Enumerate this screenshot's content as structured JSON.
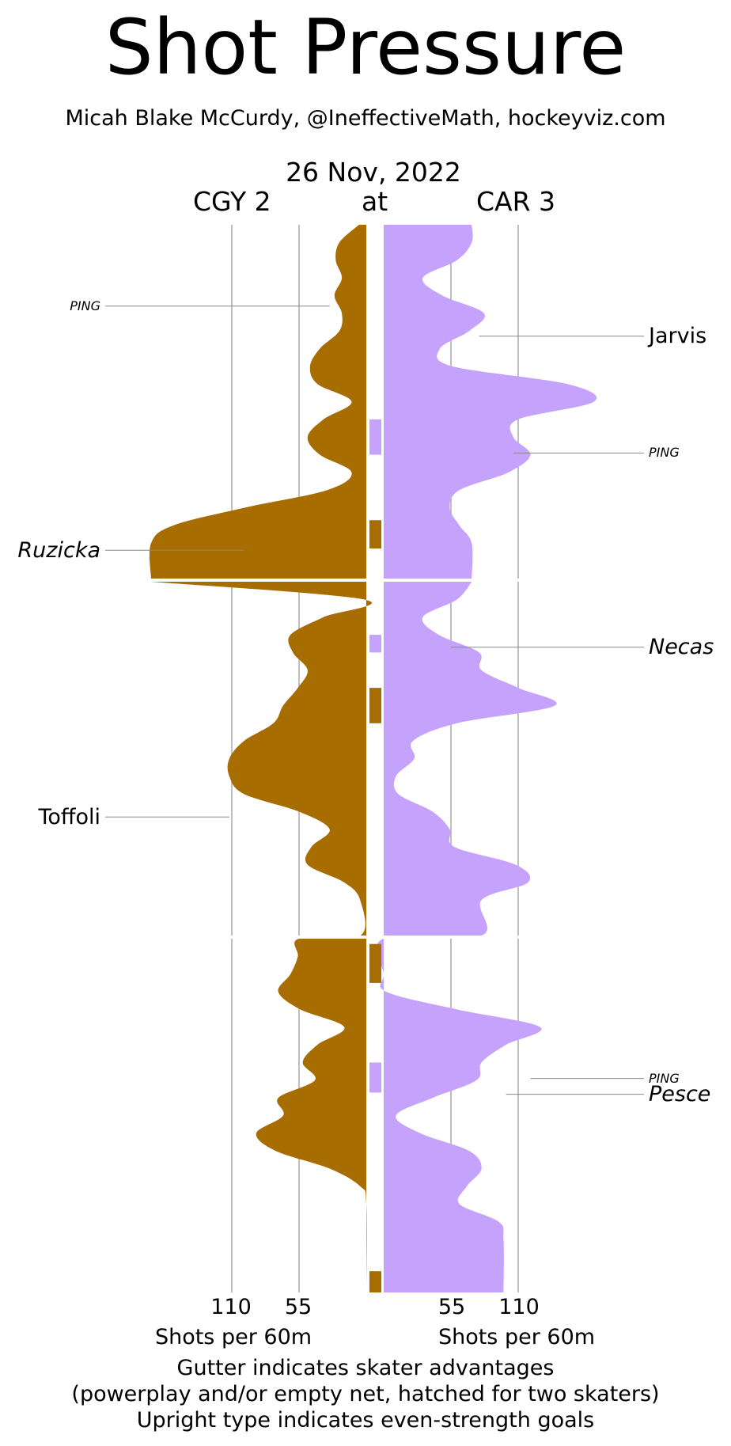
{
  "title": "Shot Pressure",
  "subtitle": "Micah Blake McCurdy, @IneffectiveMath, hockeyviz.com",
  "date": "26 Nov, 2022",
  "away_label": "CGY 2",
  "at_label": "at",
  "home_label": "CAR 3",
  "ticks": {
    "left_110": "110",
    "left_55": "55",
    "right_55": "55",
    "right_110": "110"
  },
  "axis_label_left": "Shots per 60m",
  "axis_label_right": "Shots per 60m",
  "footer": [
    "Gutter indicates skater advantages",
    "(powerplay and/or empty net, hatched for two skaters)",
    "Upright type indicates even-strength goals"
  ],
  "colors": {
    "away": "#a86d00",
    "home": "#c5a3fd",
    "grid": "#aaaaaa",
    "leader": "#888888"
  },
  "chart_data": {
    "type": "area",
    "x_unit": "game minutes",
    "value_unit": "Shots per 60m",
    "xlim": [
      0,
      60
    ],
    "periods": [
      [
        0,
        20
      ],
      [
        20,
        40
      ],
      [
        40,
        60
      ]
    ],
    "grid_values": [
      55,
      110
    ],
    "series": [
      {
        "name": "CGY 2",
        "side": "left",
        "points": [
          [
            0,
            6
          ],
          [
            1,
            22
          ],
          [
            2,
            25
          ],
          [
            3,
            20
          ],
          [
            4,
            26
          ],
          [
            5,
            20
          ],
          [
            6,
            22
          ],
          [
            7,
            38
          ],
          [
            8,
            46
          ],
          [
            9,
            40
          ],
          [
            10,
            12
          ],
          [
            11,
            35
          ],
          [
            12,
            48
          ],
          [
            13,
            38
          ],
          [
            14,
            12
          ],
          [
            15,
            32
          ],
          [
            16,
            100
          ],
          [
            17,
            158
          ],
          [
            18,
            176
          ],
          [
            20,
            176
          ],
          [
            21,
            2
          ],
          [
            22,
            35
          ],
          [
            23,
            62
          ],
          [
            24,
            60
          ],
          [
            25,
            48
          ],
          [
            26,
            56
          ],
          [
            27,
            68
          ],
          [
            28,
            76
          ],
          [
            29,
            100
          ],
          [
            30,
            112
          ],
          [
            31,
            112
          ],
          [
            32,
            100
          ],
          [
            33,
            55
          ],
          [
            34,
            30
          ],
          [
            35,
            45
          ],
          [
            36,
            48
          ],
          [
            37,
            18
          ],
          [
            38,
            5
          ],
          [
            40,
            5
          ],
          [
            40,
            55
          ],
          [
            41,
            56
          ],
          [
            42,
            62
          ],
          [
            43,
            72
          ],
          [
            44,
            54
          ],
          [
            45,
            18
          ],
          [
            46,
            40
          ],
          [
            47,
            52
          ],
          [
            48,
            42
          ],
          [
            49,
            72
          ],
          [
            50,
            68
          ],
          [
            51,
            90
          ],
          [
            52,
            74
          ],
          [
            53,
            30
          ],
          [
            54,
            5
          ],
          [
            55,
            0
          ],
          [
            60,
            0
          ]
        ]
      },
      {
        "name": "CAR 3",
        "side": "right",
        "points": [
          [
            0,
            72
          ],
          [
            1,
            72
          ],
          [
            2,
            60
          ],
          [
            3,
            32
          ],
          [
            4,
            48
          ],
          [
            5,
            82
          ],
          [
            6,
            70
          ],
          [
            7,
            46
          ],
          [
            8,
            56
          ],
          [
            9,
            150
          ],
          [
            10,
            172
          ],
          [
            11,
            110
          ],
          [
            12,
            106
          ],
          [
            13,
            120
          ],
          [
            14,
            102
          ],
          [
            15,
            62
          ],
          [
            16,
            54
          ],
          [
            17,
            62
          ],
          [
            18,
            72
          ],
          [
            20,
            72
          ],
          [
            21,
            60
          ],
          [
            22,
            32
          ],
          [
            23,
            45
          ],
          [
            24,
            78
          ],
          [
            25,
            80
          ],
          [
            26,
            110
          ],
          [
            27,
            140
          ],
          [
            28,
            60
          ],
          [
            29,
            24
          ],
          [
            30,
            25
          ],
          [
            31,
            10
          ],
          [
            32,
            12
          ],
          [
            33,
            40
          ],
          [
            34,
            54
          ],
          [
            35,
            58
          ],
          [
            36,
            108
          ],
          [
            37,
            118
          ],
          [
            38,
            80
          ],
          [
            40,
            80
          ],
          [
            40,
            0
          ],
          [
            42,
            0
          ],
          [
            43,
            2
          ],
          [
            44,
            60
          ],
          [
            45,
            128
          ],
          [
            46,
            100
          ],
          [
            47,
            80
          ],
          [
            48,
            76
          ],
          [
            49,
            40
          ],
          [
            50,
            10
          ],
          [
            51,
            30
          ],
          [
            52,
            70
          ],
          [
            53,
            80
          ],
          [
            54,
            68
          ],
          [
            55,
            62
          ],
          [
            56,
            94
          ],
          [
            57,
            98
          ],
          [
            60,
            98
          ]
        ]
      }
    ],
    "gutter": [
      {
        "team": "CAR 3",
        "start": 11,
        "end": 13
      },
      {
        "team": "CGY 2",
        "start": 16.7,
        "end": 18.3
      },
      {
        "team": "CAR 3",
        "start": 23,
        "end": 24
      },
      {
        "team": "CGY 2",
        "start": 26,
        "end": 28
      },
      {
        "team": "CGY 2",
        "start": 40.3,
        "end": 42.5
      },
      {
        "team": "CAR 3",
        "start": 47,
        "end": 48.7
      },
      {
        "team": "CGY 2",
        "start": 58.8,
        "end": 60
      }
    ],
    "annotations": [
      {
        "label": "PING",
        "side": "left",
        "time": 4.6,
        "value": 30,
        "even_strength": false,
        "size": "small"
      },
      {
        "label": "Jarvis",
        "side": "right",
        "time": 6.3,
        "value": 78,
        "even_strength": true,
        "size": "large"
      },
      {
        "label": "PING",
        "side": "right",
        "time": 12.9,
        "value": 106,
        "even_strength": false,
        "size": "small"
      },
      {
        "label": "Ruzicka",
        "side": "left",
        "time": 18.4,
        "value": 100,
        "even_strength": false,
        "size": "large"
      },
      {
        "label": "Necas",
        "side": "right",
        "time": 23.7,
        "value": 55,
        "even_strength": false,
        "size": "large"
      },
      {
        "label": "Toffoli",
        "side": "left",
        "time": 33.3,
        "value": 112,
        "even_strength": true,
        "size": "large"
      },
      {
        "label": "PING",
        "side": "right",
        "time": 47.9,
        "value": 120,
        "even_strength": false,
        "size": "small"
      },
      {
        "label": "Pesce",
        "side": "right",
        "time": 48.8,
        "value": 100,
        "even_strength": false,
        "size": "large"
      }
    ]
  }
}
